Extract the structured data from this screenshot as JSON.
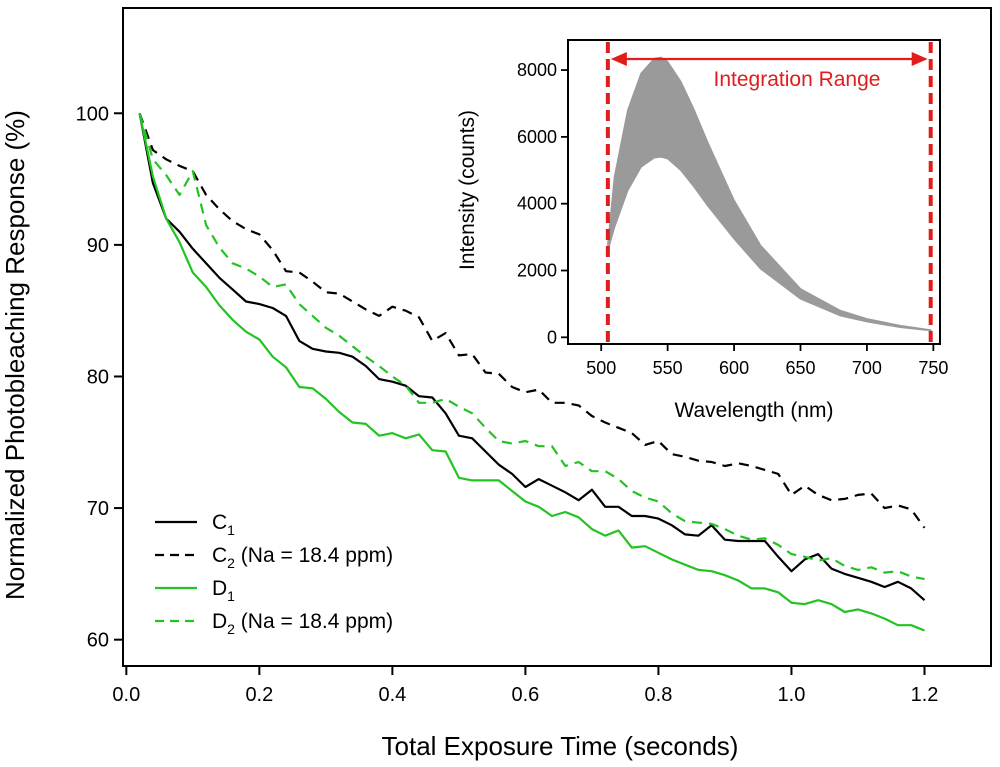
{
  "chart_data": [
    {
      "id": "main",
      "type": "line",
      "title": "",
      "xlabel": "Total Exposure Time (seconds)",
      "ylabel": "Normalized Photobleaching Response (%)",
      "xlim": [
        -0.005,
        1.3
      ],
      "ylim": [
        58,
        108
      ],
      "xticks": [
        0.0,
        0.2,
        0.4,
        0.6,
        0.8,
        1.0,
        1.2
      ],
      "xtick_labels": [
        "0.0",
        "0.2",
        "0.4",
        "0.6",
        "0.8",
        "1.0",
        "1.2"
      ],
      "yticks": [
        60,
        70,
        80,
        90,
        100
      ],
      "ytick_labels": [
        "60",
        "70",
        "80",
        "90",
        "100"
      ],
      "grid": false,
      "legend_position": "bottom-left",
      "series": [
        {
          "key": "C1",
          "name": "C",
          "subscript": "1",
          "suffix": "",
          "color": "#000000",
          "dash": "solid",
          "x": [
            0.02,
            0.04,
            0.06,
            0.08,
            0.1,
            0.12,
            0.14,
            0.16,
            0.18,
            0.2,
            0.22,
            0.24,
            0.26,
            0.28,
            0.3,
            0.32,
            0.34,
            0.36,
            0.38,
            0.4,
            0.42,
            0.44,
            0.46,
            0.48,
            0.5,
            0.52,
            0.54,
            0.56,
            0.58,
            0.6,
            0.62,
            0.64,
            0.66,
            0.68,
            0.7,
            0.72,
            0.74,
            0.76,
            0.78,
            0.8,
            0.82,
            0.84,
            0.86,
            0.88,
            0.9,
            0.92,
            0.94,
            0.96,
            0.98,
            1.0,
            1.02,
            1.04,
            1.06,
            1.08,
            1.1,
            1.12,
            1.14,
            1.16,
            1.18,
            1.2
          ],
          "y": [
            100,
            94.7,
            92,
            91,
            89.7,
            88.6,
            87.5,
            86.6,
            85.7,
            85.5,
            85.2,
            84.6,
            82.7,
            82.1,
            81.9,
            81.8,
            81.5,
            80.8,
            79.8,
            79.6,
            79.3,
            78.5,
            78.4,
            77.2,
            75.5,
            75.3,
            74.3,
            73.3,
            72.6,
            71.6,
            72.2,
            71.7,
            71.2,
            70.6,
            71.4,
            70.1,
            70.1,
            69.4,
            69.4,
            69.2,
            68.7,
            68,
            67.9,
            68.7,
            67.6,
            67.5,
            67.5,
            67.5,
            66.3,
            65.2,
            66.1,
            66.5,
            65.4,
            65,
            64.7,
            64.4,
            64,
            64.4,
            63.9,
            63
          ]
        },
        {
          "key": "C2",
          "name": "C",
          "subscript": "2",
          "suffix": " (Na = 18.4 ppm)",
          "color": "#000000",
          "dash": "dashed",
          "x": [
            0.02,
            0.04,
            0.06,
            0.08,
            0.1,
            0.12,
            0.14,
            0.16,
            0.18,
            0.2,
            0.22,
            0.24,
            0.26,
            0.28,
            0.3,
            0.32,
            0.34,
            0.36,
            0.38,
            0.4,
            0.42,
            0.44,
            0.46,
            0.48,
            0.5,
            0.52,
            0.54,
            0.56,
            0.58,
            0.6,
            0.62,
            0.64,
            0.66,
            0.68,
            0.7,
            0.72,
            0.74,
            0.76,
            0.78,
            0.8,
            0.82,
            0.84,
            0.86,
            0.88,
            0.9,
            0.92,
            0.94,
            0.96,
            0.98,
            1.0,
            1.02,
            1.04,
            1.06,
            1.08,
            1.1,
            1.12,
            1.14,
            1.16,
            1.18,
            1.2
          ],
          "y": [
            100,
            97.2,
            96.5,
            96,
            95.6,
            93.8,
            92.7,
            91.8,
            91.2,
            90.8,
            89.6,
            88,
            87.9,
            87.2,
            86.4,
            86.3,
            85.7,
            85.1,
            84.6,
            85.3,
            85,
            84.5,
            82.7,
            83.3,
            81.6,
            81.7,
            80.3,
            80.2,
            79.2,
            78.8,
            79,
            78,
            78,
            77.8,
            77,
            76.5,
            76.1,
            75.7,
            74.8,
            75.1,
            74.1,
            73.9,
            73.6,
            73.5,
            73.2,
            73.4,
            73.2,
            72.9,
            72.6,
            71,
            71.7,
            71,
            70.6,
            70.7,
            71,
            71.1,
            70,
            70.2,
            69.9,
            68.5
          ]
        },
        {
          "key": "D1",
          "name": "D",
          "subscript": "1",
          "suffix": "",
          "color": "#22c322",
          "dash": "solid",
          "x": [
            0.02,
            0.04,
            0.06,
            0.08,
            0.1,
            0.12,
            0.14,
            0.16,
            0.18,
            0.2,
            0.22,
            0.24,
            0.26,
            0.28,
            0.3,
            0.32,
            0.34,
            0.36,
            0.38,
            0.4,
            0.42,
            0.44,
            0.46,
            0.48,
            0.5,
            0.52,
            0.54,
            0.56,
            0.58,
            0.6,
            0.62,
            0.64,
            0.66,
            0.68,
            0.7,
            0.72,
            0.74,
            0.76,
            0.78,
            0.8,
            0.82,
            0.84,
            0.86,
            0.88,
            0.9,
            0.92,
            0.94,
            0.96,
            0.98,
            1.0,
            1.02,
            1.04,
            1.06,
            1.08,
            1.1,
            1.12,
            1.14,
            1.16,
            1.18,
            1.2
          ],
          "y": [
            100,
            95.2,
            92,
            90.2,
            87.9,
            86.8,
            85.4,
            84.3,
            83.4,
            82.8,
            81.5,
            80.7,
            79.2,
            79.1,
            78.3,
            77.3,
            76.5,
            76.4,
            75.5,
            75.7,
            75.3,
            75.6,
            74.4,
            74.3,
            72.3,
            72.1,
            72.1,
            72.1,
            71.3,
            70.5,
            70.1,
            69.4,
            69.7,
            69.3,
            68.4,
            67.9,
            68.3,
            67,
            67.1,
            66.6,
            66.1,
            65.7,
            65.3,
            65.2,
            64.9,
            64.5,
            63.9,
            63.9,
            63.6,
            62.8,
            62.7,
            63,
            62.7,
            62.1,
            62.3,
            62,
            61.6,
            61.1,
            61.1,
            60.7
          ]
        },
        {
          "key": "D2",
          "name": "D",
          "subscript": "2",
          "suffix": " (Na = 18.4 ppm)",
          "color": "#22c322",
          "dash": "dashed",
          "x": [
            0.02,
            0.04,
            0.06,
            0.08,
            0.1,
            0.12,
            0.14,
            0.16,
            0.18,
            0.2,
            0.22,
            0.24,
            0.26,
            0.28,
            0.3,
            0.32,
            0.34,
            0.36,
            0.38,
            0.4,
            0.42,
            0.44,
            0.46,
            0.48,
            0.5,
            0.52,
            0.54,
            0.56,
            0.58,
            0.6,
            0.62,
            0.64,
            0.66,
            0.68,
            0.7,
            0.72,
            0.74,
            0.76,
            0.78,
            0.8,
            0.82,
            0.84,
            0.86,
            0.88,
            0.9,
            0.92,
            0.94,
            0.96,
            0.98,
            1.0,
            1.02,
            1.04,
            1.06,
            1.08,
            1.1,
            1.12,
            1.14,
            1.16,
            1.18,
            1.2
          ],
          "y": [
            100,
            96.5,
            95.3,
            93.8,
            95.6,
            91.5,
            89.8,
            88.6,
            88.2,
            87.6,
            86.8,
            87,
            85.5,
            84.6,
            83.7,
            83.1,
            82.3,
            81.5,
            80.8,
            80,
            79.3,
            78,
            78,
            78.3,
            77.7,
            77.2,
            76.1,
            75.1,
            74.9,
            75.1,
            74.7,
            74.7,
            73.2,
            73.5,
            72.8,
            72.8,
            72.2,
            71.3,
            70.8,
            70.5,
            69.6,
            69,
            68.9,
            68.8,
            68.4,
            67.9,
            67.6,
            67.7,
            67.2,
            66.5,
            66.3,
            66,
            66.2,
            65.6,
            65.3,
            65.5,
            65.1,
            65.2,
            64.8,
            64.6
          ]
        }
      ]
    },
    {
      "id": "inset",
      "type": "line",
      "title": "",
      "xlabel": "Wavelength (nm)",
      "ylabel": "Intensity (counts)",
      "xlim": [
        475,
        755
      ],
      "ylim": [
        -200,
        8900
      ],
      "xticks": [
        500,
        550,
        600,
        650,
        700,
        750
      ],
      "xtick_labels": [
        "500",
        "550",
        "600",
        "650",
        "700",
        "750"
      ],
      "yticks": [
        0,
        2000,
        4000,
        6000,
        8000
      ],
      "ytick_labels": [
        "0",
        "2000",
        "4000",
        "6000",
        "8000"
      ],
      "grid": false,
      "spectrum_band": {
        "color": "#9a9a9a",
        "wavelength": [
          505,
          510,
          520,
          530,
          540,
          545,
          550,
          560,
          570,
          580,
          600,
          620,
          650,
          680,
          700,
          725,
          748
        ],
        "upper": [
          2800,
          4800,
          6800,
          7900,
          8350,
          8380,
          8250,
          7650,
          6800,
          5850,
          4100,
          2750,
          1450,
          800,
          550,
          350,
          220
        ],
        "lower": [
          2600,
          3300,
          4400,
          5100,
          5380,
          5400,
          5350,
          5000,
          4500,
          3950,
          2950,
          2050,
          1150,
          650,
          470,
          300,
          200
        ]
      },
      "integration_range": {
        "label": "Integration Range",
        "start_nm": 505,
        "end_nm": 748,
        "color": "#e21b1b"
      }
    }
  ]
}
